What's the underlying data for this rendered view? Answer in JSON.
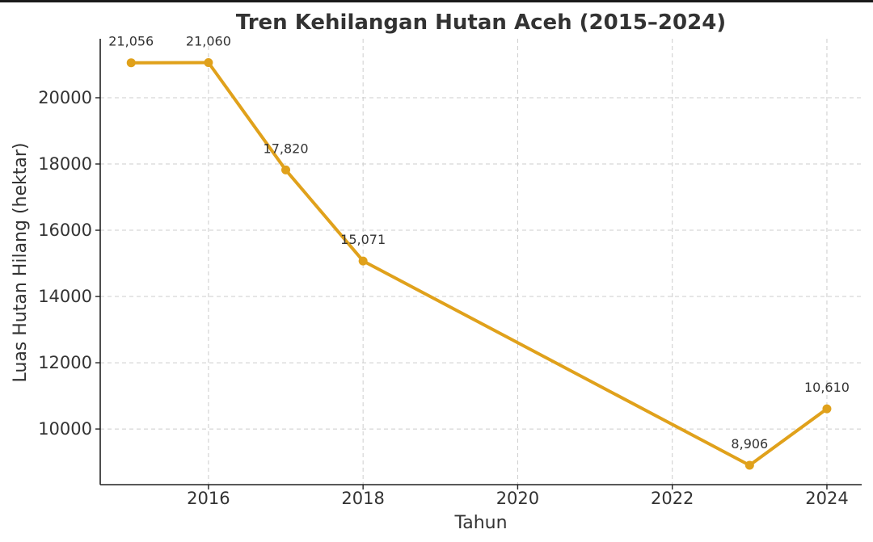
{
  "chart_data": {
    "type": "line",
    "title": "Tren Kehilangan Hutan Aceh (2015–2024)",
    "xlabel": "Tahun",
    "ylabel": "Luas Hutan Hilang (hektar)",
    "x": [
      2015,
      2016,
      2017,
      2018,
      2023,
      2024
    ],
    "series": [
      {
        "values": [
          21056,
          21060,
          17820,
          15071,
          8906,
          10610
        ]
      }
    ],
    "data_labels": [
      "21,056",
      "21,060",
      "17,820",
      "15,071",
      "8,906",
      "10,610"
    ],
    "xticks": [
      2016,
      2018,
      2020,
      2022,
      2024
    ],
    "yticks": [
      10000,
      12000,
      14000,
      16000,
      18000,
      20000
    ],
    "xlim": [
      2014.6,
      2024.45
    ],
    "ylim": [
      8320,
      21780
    ],
    "grid": true,
    "line_color": "#e0a11b"
  }
}
